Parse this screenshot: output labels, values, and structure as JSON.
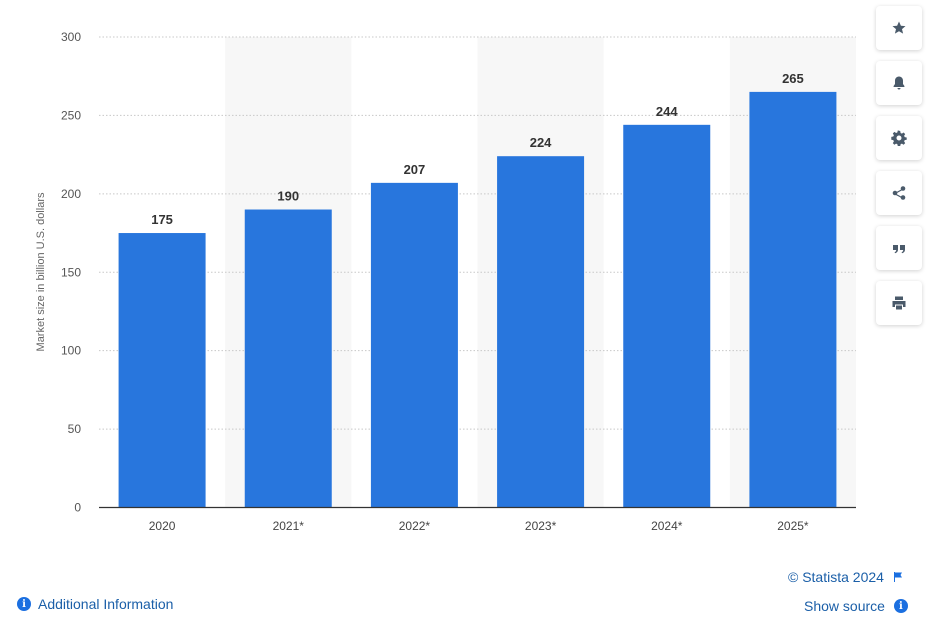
{
  "chart_data": {
    "type": "bar",
    "categories": [
      "2020",
      "2021*",
      "2022*",
      "2023*",
      "2024*",
      "2025*"
    ],
    "values": [
      175,
      190,
      207,
      224,
      244,
      265
    ],
    "ylabel": "Market size in billion U.S. dollars",
    "ylim": [
      0,
      300
    ],
    "yticks": [
      0,
      50,
      100,
      150,
      200,
      250,
      300
    ],
    "bar_color": "#2876dd",
    "grid": true,
    "data_labels": true
  },
  "side_buttons": [
    {
      "icon": "star-icon"
    },
    {
      "icon": "bell-icon"
    },
    {
      "icon": "gear-icon"
    },
    {
      "icon": "share-icon"
    },
    {
      "icon": "quote-icon"
    },
    {
      "icon": "print-icon"
    }
  ],
  "footer": {
    "copyright": "© Statista 2024",
    "additional_info": "Additional Information",
    "show_source": "Show source"
  }
}
